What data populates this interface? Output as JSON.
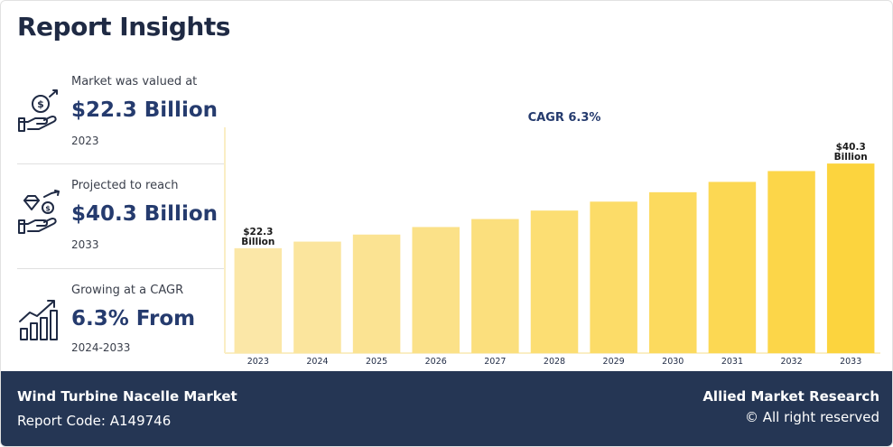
{
  "header": {
    "title": "Report Insights"
  },
  "stats": [
    {
      "label": "Market was valued at",
      "value": "$22.3 Billion",
      "sub": "2023",
      "icon": "money-bag-hand-icon"
    },
    {
      "label": "Projected to reach",
      "value": "$40.3 Billion",
      "sub": "2033",
      "icon": "diamond-coin-hand-icon"
    },
    {
      "label": "Growing at a CAGR",
      "value": "6.3% From",
      "sub": "2024-2033",
      "icon": "growth-bar-chart-icon"
    }
  ],
  "chart_data": {
    "type": "bar",
    "annotation": "CAGR 6.3%",
    "categories": [
      "2023",
      "2024",
      "2025",
      "2026",
      "2027",
      "2028",
      "2029",
      "2030",
      "2031",
      "2032",
      "2033"
    ],
    "values": [
      22.3,
      23.7,
      25.2,
      26.8,
      28.5,
      30.3,
      32.2,
      34.2,
      36.4,
      38.7,
      40.3
    ],
    "data_labels": [
      {
        "index": 0,
        "lines": [
          "$22.3",
          "Billion"
        ]
      },
      {
        "index": 10,
        "lines": [
          "$40.3",
          "Billion"
        ]
      }
    ],
    "ylim": [
      0,
      48
    ],
    "colors": {
      "start": "#fbe7a7",
      "end": "#fcd43e"
    }
  },
  "footer": {
    "market_name": "Wind Turbine Nacelle Market",
    "report_code": "Report Code: A149746",
    "brand": "Allied Market Research",
    "rights": "© All right reserved"
  }
}
